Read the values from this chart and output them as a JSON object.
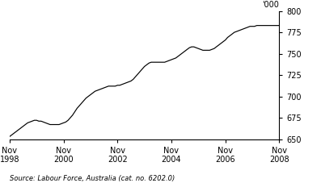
{
  "ylabel": "'000",
  "source": "Source: Labour Force, Australia (cat. no. 6202.0)",
  "ylim": [
    650,
    800
  ],
  "yticks": [
    650,
    675,
    700,
    725,
    750,
    775,
    800
  ],
  "xtick_labels": [
    "Nov\n1998",
    "Nov\n2000",
    "Nov\n2002",
    "Nov\n2004",
    "Nov\n2006",
    "Nov\n2008"
  ],
  "xtick_positions": [
    0,
    24,
    48,
    72,
    96,
    120
  ],
  "line_color": "#000000",
  "background_color": "#ffffff",
  "data_x": [
    0,
    1,
    2,
    3,
    4,
    5,
    6,
    7,
    8,
    9,
    10,
    11,
    12,
    13,
    14,
    15,
    16,
    17,
    18,
    19,
    20,
    21,
    22,
    23,
    24,
    25,
    26,
    27,
    28,
    29,
    30,
    31,
    32,
    33,
    34,
    35,
    36,
    37,
    38,
    39,
    40,
    41,
    42,
    43,
    44,
    45,
    46,
    47,
    48,
    49,
    50,
    51,
    52,
    53,
    54,
    55,
    56,
    57,
    58,
    59,
    60,
    61,
    62,
    63,
    64,
    65,
    66,
    67,
    68,
    69,
    70,
    71,
    72,
    73,
    74,
    75,
    76,
    77,
    78,
    79,
    80,
    81,
    82,
    83,
    84,
    85,
    86,
    87,
    88,
    89,
    90,
    91,
    92,
    93,
    94,
    95,
    96,
    97,
    98,
    99,
    100,
    101,
    102,
    103,
    104,
    105,
    106,
    107,
    108,
    109,
    110,
    111,
    112,
    113,
    114,
    115,
    116,
    117,
    118,
    119,
    120
  ],
  "data_y": [
    653,
    655,
    657,
    659,
    661,
    663,
    665,
    667,
    669,
    670,
    671,
    672,
    672,
    671,
    671,
    670,
    669,
    668,
    667,
    667,
    667,
    667,
    667,
    668,
    669,
    670,
    672,
    675,
    678,
    682,
    686,
    689,
    692,
    695,
    698,
    700,
    702,
    704,
    706,
    707,
    708,
    709,
    710,
    711,
    712,
    712,
    712,
    712,
    713,
    713,
    714,
    715,
    716,
    717,
    718,
    720,
    723,
    726,
    729,
    732,
    735,
    737,
    739,
    740,
    740,
    740,
    740,
    740,
    740,
    740,
    741,
    742,
    743,
    744,
    745,
    747,
    749,
    751,
    753,
    755,
    757,
    758,
    758,
    757,
    756,
    755,
    754,
    754,
    754,
    754,
    755,
    756,
    758,
    760,
    762,
    764,
    766,
    769,
    771,
    773,
    775,
    776,
    777,
    778,
    779,
    780,
    781,
    782,
    782,
    782,
    783,
    783,
    783,
    783,
    783,
    783,
    783,
    783,
    783,
    783,
    783
  ]
}
